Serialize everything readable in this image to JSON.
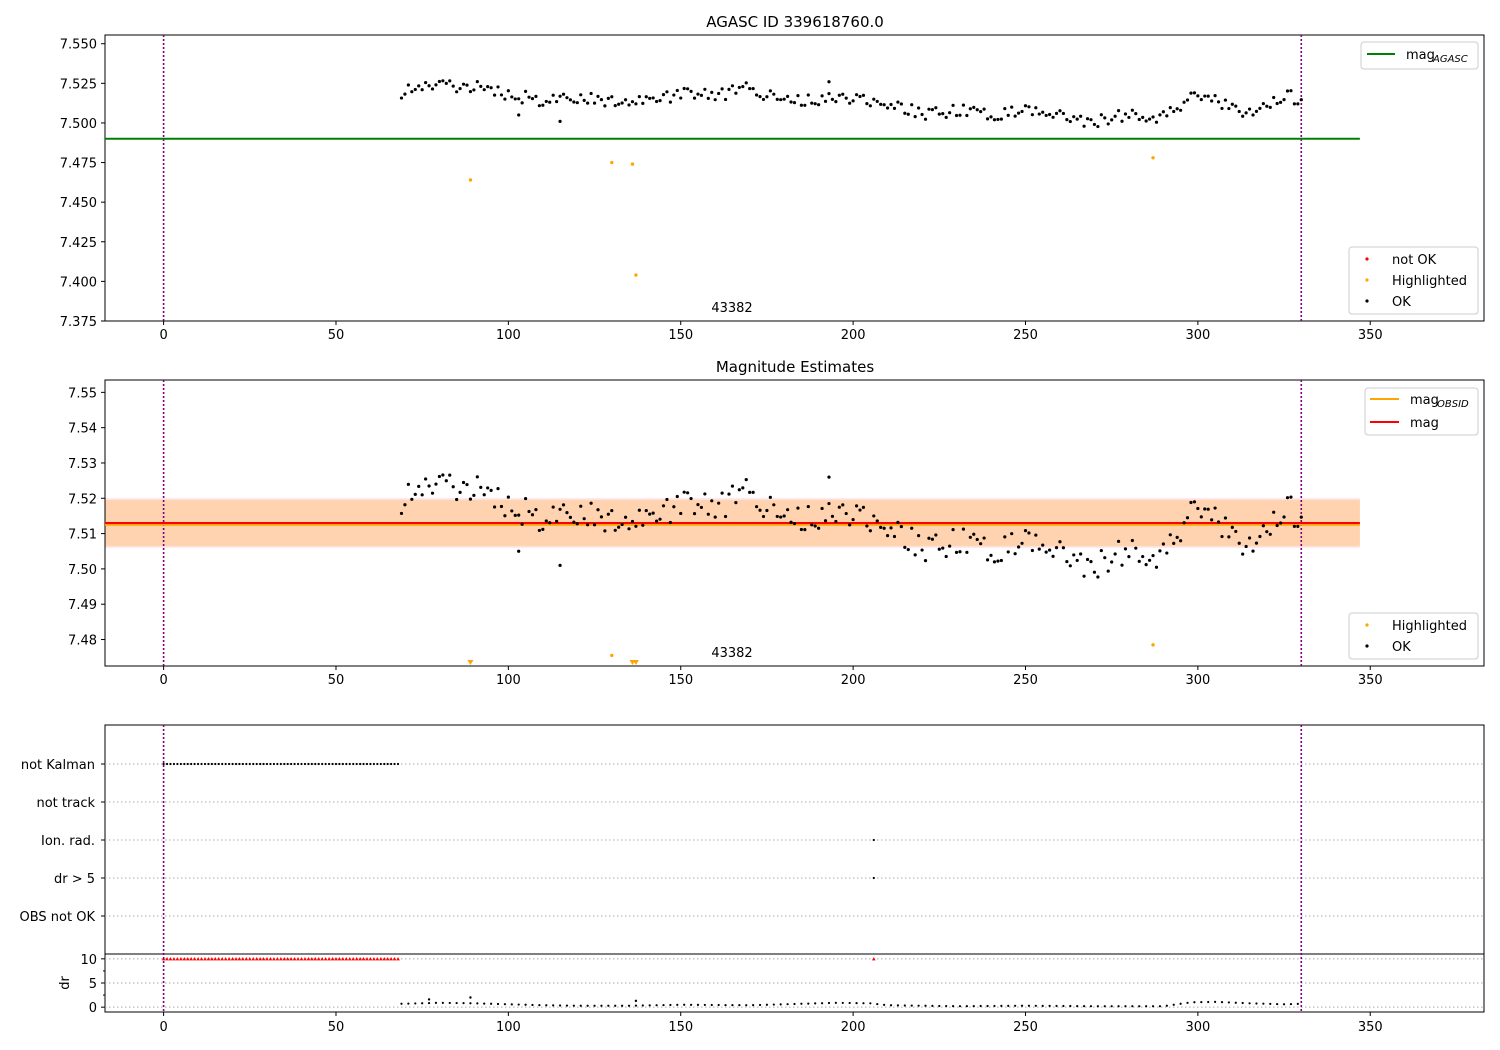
{
  "chart_data": [
    {
      "type": "scatter",
      "title": "AGASC ID 339618760.0",
      "xlim": [
        -17,
        383
      ],
      "ylim": [
        7.375,
        7.5555
      ],
      "xticks": [
        "0",
        "50",
        "100",
        "150",
        "200",
        "250",
        "300",
        "350"
      ],
      "yticks": [
        "7.375",
        "7.400",
        "7.425",
        "7.450",
        "7.475",
        "7.500",
        "7.525",
        "7.550"
      ],
      "annotation": "43382",
      "vlines": [
        0,
        330
      ],
      "hline": {
        "y": 7.49,
        "x": [
          -17,
          347
        ],
        "color": "#008000"
      },
      "legend_line": {
        "name": "mag",
        "sub": "AGASC",
        "color": "#008000"
      },
      "legend_points": [
        {
          "name": "not OK",
          "color": "#ff0000"
        },
        {
          "name": "Highlighted",
          "color": "#ffa500"
        },
        {
          "name": "OK",
          "color": "#000000"
        }
      ],
      "highlighted": [
        [
          89,
          7.464
        ],
        [
          130,
          7.475
        ],
        [
          136,
          7.474
        ],
        [
          137,
          7.404
        ],
        [
          287,
          7.478
        ]
      ],
      "ok_series": {
        "x_start": 69,
        "x_end": 330,
        "step": 1,
        "knots_x": [
          69,
          78,
          90,
          100,
          110,
          120,
          130,
          140,
          150,
          160,
          170,
          180,
          190,
          200,
          210,
          220,
          230,
          240,
          250,
          260,
          270,
          280,
          290,
          300,
          310,
          316,
          325,
          330
        ],
        "knots_y": [
          7.519,
          7.524,
          7.523,
          7.518,
          7.514,
          7.516,
          7.514,
          7.513,
          7.518,
          7.517,
          7.522,
          7.514,
          7.515,
          7.516,
          7.513,
          7.506,
          7.508,
          7.505,
          7.509,
          7.504,
          7.501,
          7.506,
          7.504,
          7.518,
          7.509,
          7.504,
          7.518,
          7.514
        ],
        "amplitude": 0.004,
        "outliers": [
          [
            103,
            7.505
          ],
          [
            115,
            7.501
          ],
          [
            193,
            7.526
          ]
        ]
      }
    },
    {
      "type": "scatter",
      "title": "Magnitude Estimates",
      "xlim": [
        -17,
        383
      ],
      "ylim": [
        7.4725,
        7.5535
      ],
      "xticks": [
        "0",
        "50",
        "100",
        "150",
        "200",
        "250",
        "300",
        "350"
      ],
      "yticks": [
        "7.48",
        "7.49",
        "7.50",
        "7.51",
        "7.52",
        "7.53",
        "7.54",
        "7.55"
      ],
      "annotation": "43382",
      "vlines": [
        0,
        330
      ],
      "mag": 7.513,
      "mag_band": [
        7.506,
        7.52
      ],
      "mag_obsid": 7.5125,
      "obsid_band": [
        7.5065,
        7.5195
      ],
      "legend_lines": [
        {
          "name": "mag",
          "sub": "OBSID",
          "color": "#ffa500"
        },
        {
          "name": "mag",
          "sub": "",
          "color": "#ff0000"
        }
      ],
      "legend_points": [
        {
          "name": "Highlighted",
          "color": "#ffa500"
        },
        {
          "name": "OK",
          "color": "#000000"
        }
      ],
      "highlighted": [
        [
          130,
          7.4755
        ],
        [
          287,
          7.4785
        ]
      ],
      "highlighted_triangles": [
        89,
        136,
        137
      ]
    },
    {
      "type": "scatter",
      "ylabels": [
        "not Kalman",
        "not track",
        "Ion. rad.",
        "dr > 5",
        "OBS not OK"
      ],
      "xlim": [
        -17,
        383
      ],
      "not_kalman_range": [
        0,
        68
      ],
      "ion_rad_x": [
        206
      ],
      "dr5_x": [
        206
      ],
      "dr": {
        "ylabel": "dr",
        "yticks": [
          "0",
          "5",
          "10"
        ],
        "ylim": [
          -1,
          11
        ],
        "clipped_range": [
          0,
          68
        ],
        "clipped_extra": [
          206
        ],
        "clipped_value": 10,
        "x_start": 69,
        "x_end": 330,
        "step": 2,
        "knots_x": [
          69,
          80,
          90,
          100,
          110,
          120,
          135,
          150,
          170,
          185,
          195,
          205,
          210,
          230,
          250,
          270,
          290,
          298,
          305,
          315,
          325,
          330
        ],
        "knots_y": [
          0.7,
          0.9,
          0.8,
          0.6,
          0.4,
          0.3,
          0.3,
          0.5,
          0.4,
          0.7,
          0.9,
          0.8,
          0.4,
          0.2,
          0.3,
          0.2,
          0.2,
          1.0,
          1.1,
          0.8,
          0.6,
          0.7
        ],
        "spikes": [
          [
            77,
            1.6
          ],
          [
            89,
            2.0
          ],
          [
            137,
            1.3
          ]
        ]
      },
      "xticks": [
        "0",
        "50",
        "100",
        "150",
        "200",
        "250",
        "300",
        "350"
      ]
    }
  ]
}
